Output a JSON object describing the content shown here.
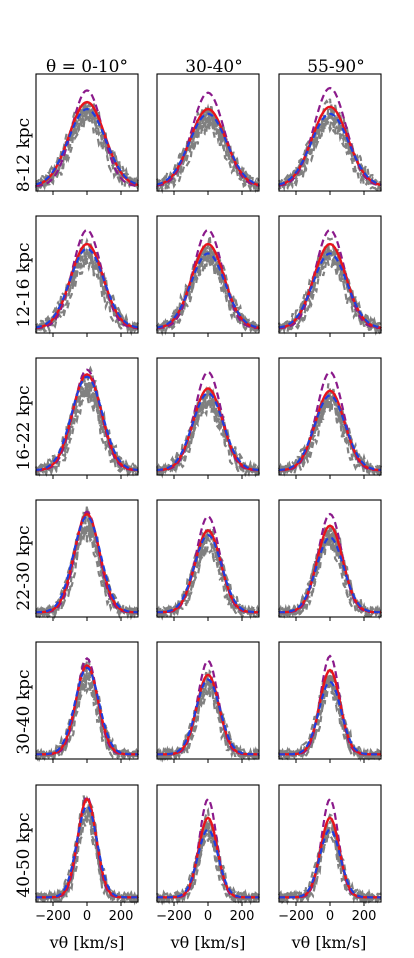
{
  "figure": {
    "col_titles": [
      "θ = 0-10°",
      "30-40°",
      "55-90°"
    ],
    "row_labels": [
      "8-12 kpc",
      "12-16 kpc",
      "16-22 kpc",
      "22-30 kpc",
      "30-40 kpc",
      "40-50 kpc"
    ],
    "xlabel": "vθ [km/s]",
    "colors": {
      "model_red": "#e8141b",
      "model_blue": "#1f3ee0",
      "model_purple": "#8b1a8b",
      "data_gray": "#808080"
    }
  },
  "chart_data": {
    "type": "line",
    "layout": "grid 6 rows x 3 columns",
    "x_ticks": [
      -200,
      0,
      200
    ],
    "xlim": [
      -300,
      300
    ],
    "series_styles": {
      "red": "solid",
      "blue": "dashed",
      "purple": "dashed",
      "gray": "dashed"
    },
    "panels": [
      {
        "row": "8-12 kpc",
        "col": "0-10",
        "sigma_red": 105,
        "sigma_blue": 110,
        "sigma_purple": 90,
        "peak_red": 0.72,
        "peak_blue": 0.66,
        "peak_purple": 0.82
      },
      {
        "row": "8-12 kpc",
        "col": "30-40",
        "sigma_red": 105,
        "sigma_blue": 110,
        "sigma_purple": 95,
        "peak_red": 0.66,
        "peak_blue": 0.62,
        "peak_purple": 0.8
      },
      {
        "row": "8-12 kpc",
        "col": "55-90",
        "sigma_red": 105,
        "sigma_blue": 110,
        "sigma_purple": 95,
        "peak_red": 0.68,
        "peak_blue": 0.62,
        "peak_purple": 0.84
      },
      {
        "row": "12-16 kpc",
        "col": "0-10",
        "sigma_red": 95,
        "sigma_blue": 100,
        "sigma_purple": 85,
        "peak_red": 0.72,
        "peak_blue": 0.68,
        "peak_purple": 0.84
      },
      {
        "row": "12-16 kpc",
        "col": "30-40",
        "sigma_red": 95,
        "sigma_blue": 100,
        "sigma_purple": 85,
        "peak_red": 0.72,
        "peak_blue": 0.64,
        "peak_purple": 0.84
      },
      {
        "row": "12-16 kpc",
        "col": "55-90",
        "sigma_red": 95,
        "sigma_blue": 100,
        "sigma_purple": 85,
        "peak_red": 0.72,
        "peak_blue": 0.64,
        "peak_purple": 0.84
      },
      {
        "row": "16-22 kpc",
        "col": "0-10",
        "sigma_red": 85,
        "sigma_blue": 90,
        "sigma_purple": 80,
        "peak_red": 0.82,
        "peak_blue": 0.8,
        "peak_purple": 0.86
      },
      {
        "row": "16-22 kpc",
        "col": "30-40",
        "sigma_red": 85,
        "sigma_blue": 90,
        "sigma_purple": 78,
        "peak_red": 0.7,
        "peak_blue": 0.66,
        "peak_purple": 0.84
      },
      {
        "row": "16-22 kpc",
        "col": "55-90",
        "sigma_red": 85,
        "sigma_blue": 90,
        "sigma_purple": 78,
        "peak_red": 0.68,
        "peak_blue": 0.64,
        "peak_purple": 0.84
      },
      {
        "row": "22-30 kpc",
        "col": "0-10",
        "sigma_red": 75,
        "sigma_blue": 80,
        "sigma_purple": 70,
        "peak_red": 0.84,
        "peak_blue": 0.82,
        "peak_purple": 0.86
      },
      {
        "row": "22-30 kpc",
        "col": "30-40",
        "sigma_red": 75,
        "sigma_blue": 80,
        "sigma_purple": 70,
        "peak_red": 0.7,
        "peak_blue": 0.66,
        "peak_purple": 0.82
      },
      {
        "row": "22-30 kpc",
        "col": "55-90",
        "sigma_red": 75,
        "sigma_blue": 80,
        "sigma_purple": 70,
        "peak_red": 0.74,
        "peak_blue": 0.64,
        "peak_purple": 0.84
      },
      {
        "row": "30-40 kpc",
        "col": "0-10",
        "sigma_red": 65,
        "sigma_blue": 70,
        "sigma_purple": 60,
        "peak_red": 0.76,
        "peak_blue": 0.74,
        "peak_purple": 0.82
      },
      {
        "row": "30-40 kpc",
        "col": "30-40",
        "sigma_red": 65,
        "sigma_blue": 70,
        "sigma_purple": 60,
        "peak_red": 0.68,
        "peak_blue": 0.64,
        "peak_purple": 0.8
      },
      {
        "row": "30-40 kpc",
        "col": "55-90",
        "sigma_red": 60,
        "sigma_blue": 65,
        "sigma_purple": 55,
        "peak_red": 0.72,
        "peak_blue": 0.62,
        "peak_purple": 0.84
      },
      {
        "row": "40-50 kpc",
        "col": "0-10",
        "sigma_red": 55,
        "sigma_blue": 60,
        "sigma_purple": 52,
        "peak_red": 0.84,
        "peak_blue": 0.78,
        "peak_purple": 0.86
      },
      {
        "row": "40-50 kpc",
        "col": "30-40",
        "sigma_red": 55,
        "sigma_blue": 60,
        "sigma_purple": 50,
        "peak_red": 0.68,
        "peak_blue": 0.58,
        "peak_purple": 0.84
      },
      {
        "row": "40-50 kpc",
        "col": "55-90",
        "sigma_red": 55,
        "sigma_blue": 60,
        "sigma_purple": 50,
        "peak_red": 0.68,
        "peak_blue": 0.58,
        "peak_purple": 0.84
      }
    ]
  }
}
